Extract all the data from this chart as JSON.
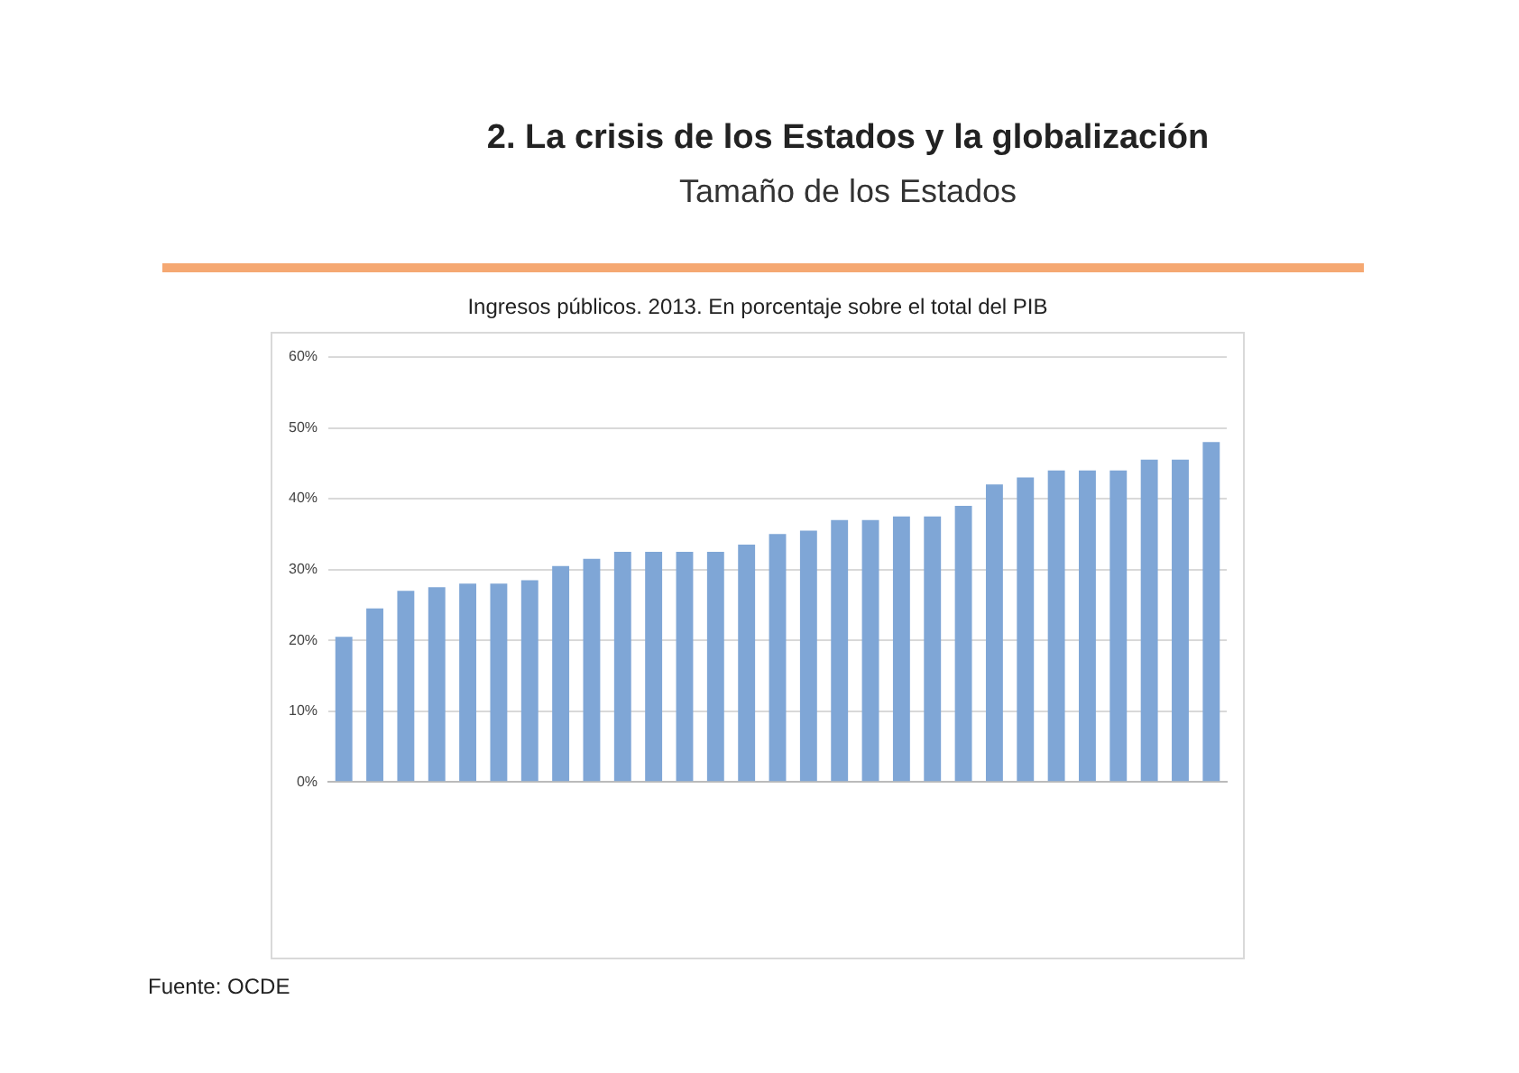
{
  "chart_data": {
    "type": "bar",
    "title": "2. La crisis de los Estados y la globalización",
    "subtitle": "Tamaño de los Estados",
    "ylabel": null,
    "annotations": [
      "Ingresos públicos. 2013. En porcentaje sobre el total del PIB",
      "Fuente: OCDE"
    ],
    "categories": [
      null,
      null,
      null,
      null,
      null,
      null,
      null,
      null,
      null,
      null,
      null,
      null,
      null,
      null,
      null,
      null,
      null,
      null,
      null,
      null,
      null,
      null,
      null,
      null,
      null,
      null,
      null,
      null,
      null
    ],
    "values": [
      20.5,
      24.5,
      27,
      27.5,
      28,
      28,
      28.5,
      30.5,
      31.5,
      32.5,
      32.5,
      32.5,
      32.5,
      33.5,
      35,
      35.5,
      37,
      37,
      37.5,
      37.5,
      39,
      42,
      43,
      44,
      44,
      44,
      45.5,
      45.5,
      48
    ],
    "color": "#7fa6d6",
    "ylim": [
      0,
      60
    ],
    "yticks": [
      {
        "value": 0,
        "label": "0%"
      },
      {
        "value": 10,
        "label": "10%"
      },
      {
        "value": 20,
        "label": "20%"
      },
      {
        "value": 30,
        "label": "30%"
      },
      {
        "value": 40,
        "label": "40%"
      },
      {
        "value": 50,
        "label": "50%"
      },
      {
        "value": 60,
        "label": "60%"
      }
    ],
    "grid": "y"
  }
}
